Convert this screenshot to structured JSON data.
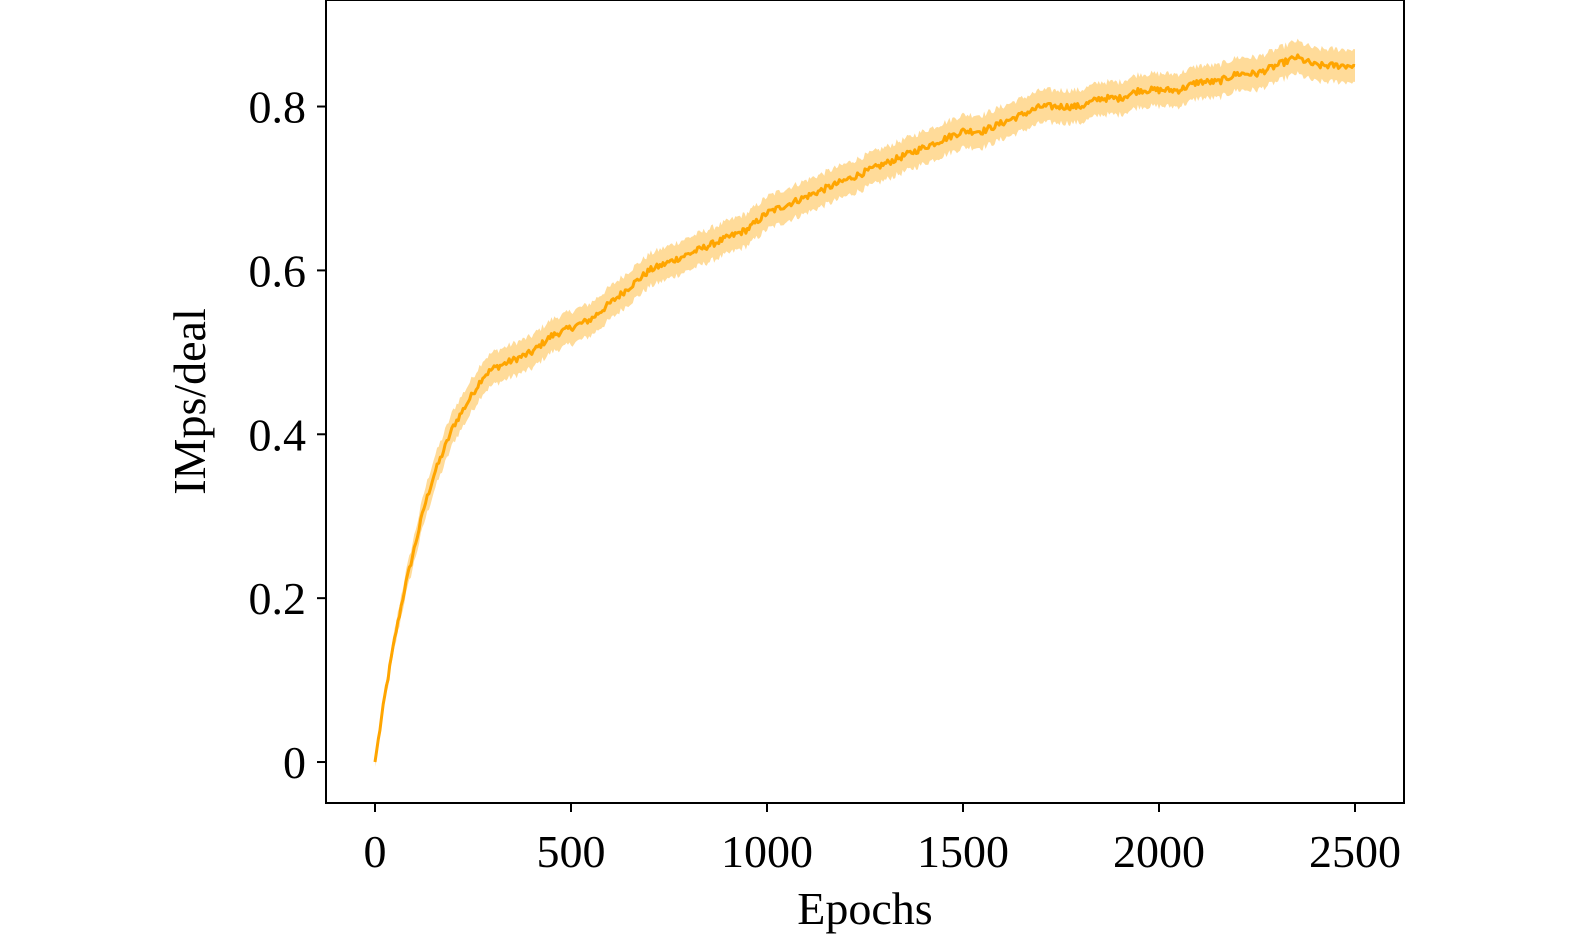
{
  "chart_data": {
    "type": "line",
    "title": "",
    "xlabel": "Epochs",
    "ylabel": "IMps/deal",
    "xlim": [
      -125,
      2625
    ],
    "ylim": [
      -0.05,
      0.93
    ],
    "xticks": [
      0,
      500,
      1000,
      1500,
      2000,
      2500
    ],
    "xtick_labels": [
      "0",
      "500",
      "1000",
      "1500",
      "2000",
      "2500"
    ],
    "yticks": [
      0,
      0.2,
      0.4,
      0.6,
      0.8
    ],
    "ytick_labels": [
      "0",
      "0.2",
      "0.4",
      "0.6",
      "0.8"
    ],
    "grid": false,
    "legend": "none",
    "series": [
      {
        "color": "#ffa500",
        "band_color": "#ffa500",
        "x": [
          0,
          25,
          50,
          75,
          100,
          125,
          150,
          175,
          200,
          225,
          250,
          275,
          300,
          350,
          400,
          450,
          500,
          550,
          600,
          650,
          700,
          750,
          800,
          850,
          900,
          950,
          1000,
          1050,
          1100,
          1150,
          1200,
          1250,
          1300,
          1350,
          1400,
          1450,
          1500,
          1550,
          1600,
          1650,
          1700,
          1750,
          1800,
          1850,
          1900,
          1950,
          2000,
          2050,
          2100,
          2150,
          2200,
          2250,
          2300,
          2350,
          2400,
          2450,
          2500
        ],
        "y": [
          0.0,
          0.08,
          0.15,
          0.21,
          0.26,
          0.31,
          0.35,
          0.38,
          0.41,
          0.43,
          0.45,
          0.47,
          0.48,
          0.49,
          0.5,
          0.52,
          0.53,
          0.54,
          0.56,
          0.58,
          0.6,
          0.61,
          0.62,
          0.63,
          0.64,
          0.65,
          0.67,
          0.68,
          0.69,
          0.7,
          0.71,
          0.72,
          0.73,
          0.74,
          0.75,
          0.76,
          0.77,
          0.77,
          0.78,
          0.79,
          0.8,
          0.8,
          0.8,
          0.81,
          0.81,
          0.82,
          0.82,
          0.82,
          0.83,
          0.83,
          0.84,
          0.84,
          0.85,
          0.86,
          0.85,
          0.85,
          0.85
        ],
        "band_halfwidth": 0.02
      }
    ]
  }
}
